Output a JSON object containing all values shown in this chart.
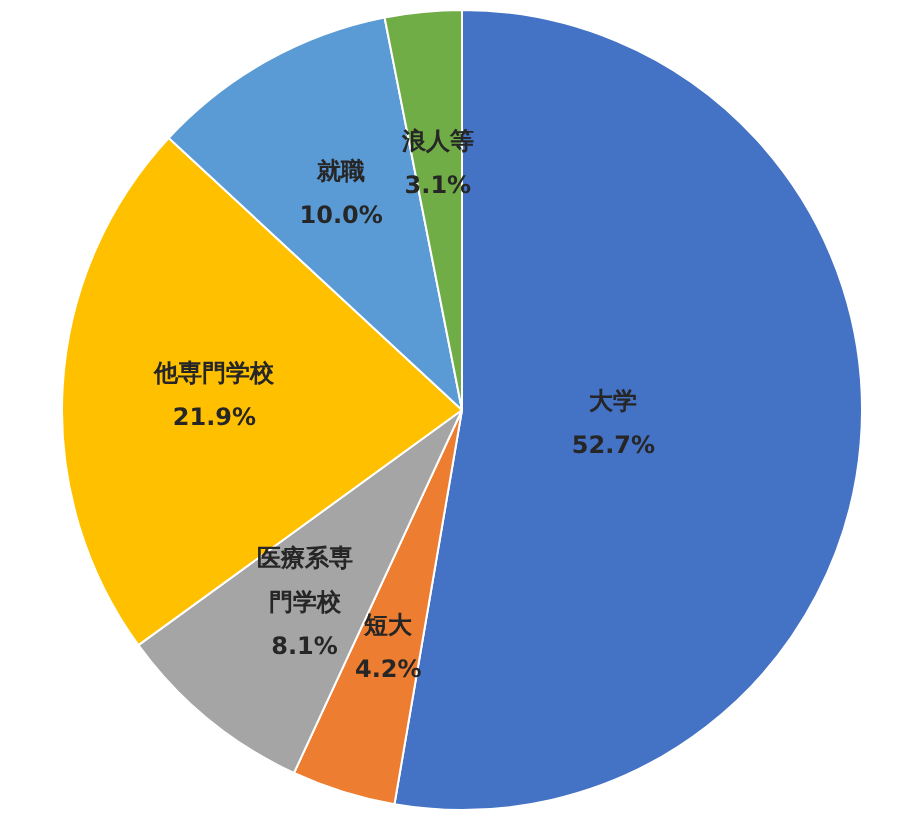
{
  "chart_data": {
    "type": "pie",
    "categories": [
      "大学",
      "短大",
      "医療系専門学校",
      "他専門学校",
      "就職",
      "浪人等"
    ],
    "values": [
      52.7,
      4.2,
      8.1,
      21.9,
      10.0,
      3.1
    ],
    "value_labels": [
      "52.7%",
      "4.2%",
      "8.1%",
      "21.9%",
      "10.0%",
      "3.1%"
    ],
    "colors": [
      "#4472c4",
      "#ed7d31",
      "#a5a5a5",
      "#ffc000",
      "#5b9bd5",
      "#70ad47"
    ],
    "legend": false
  }
}
